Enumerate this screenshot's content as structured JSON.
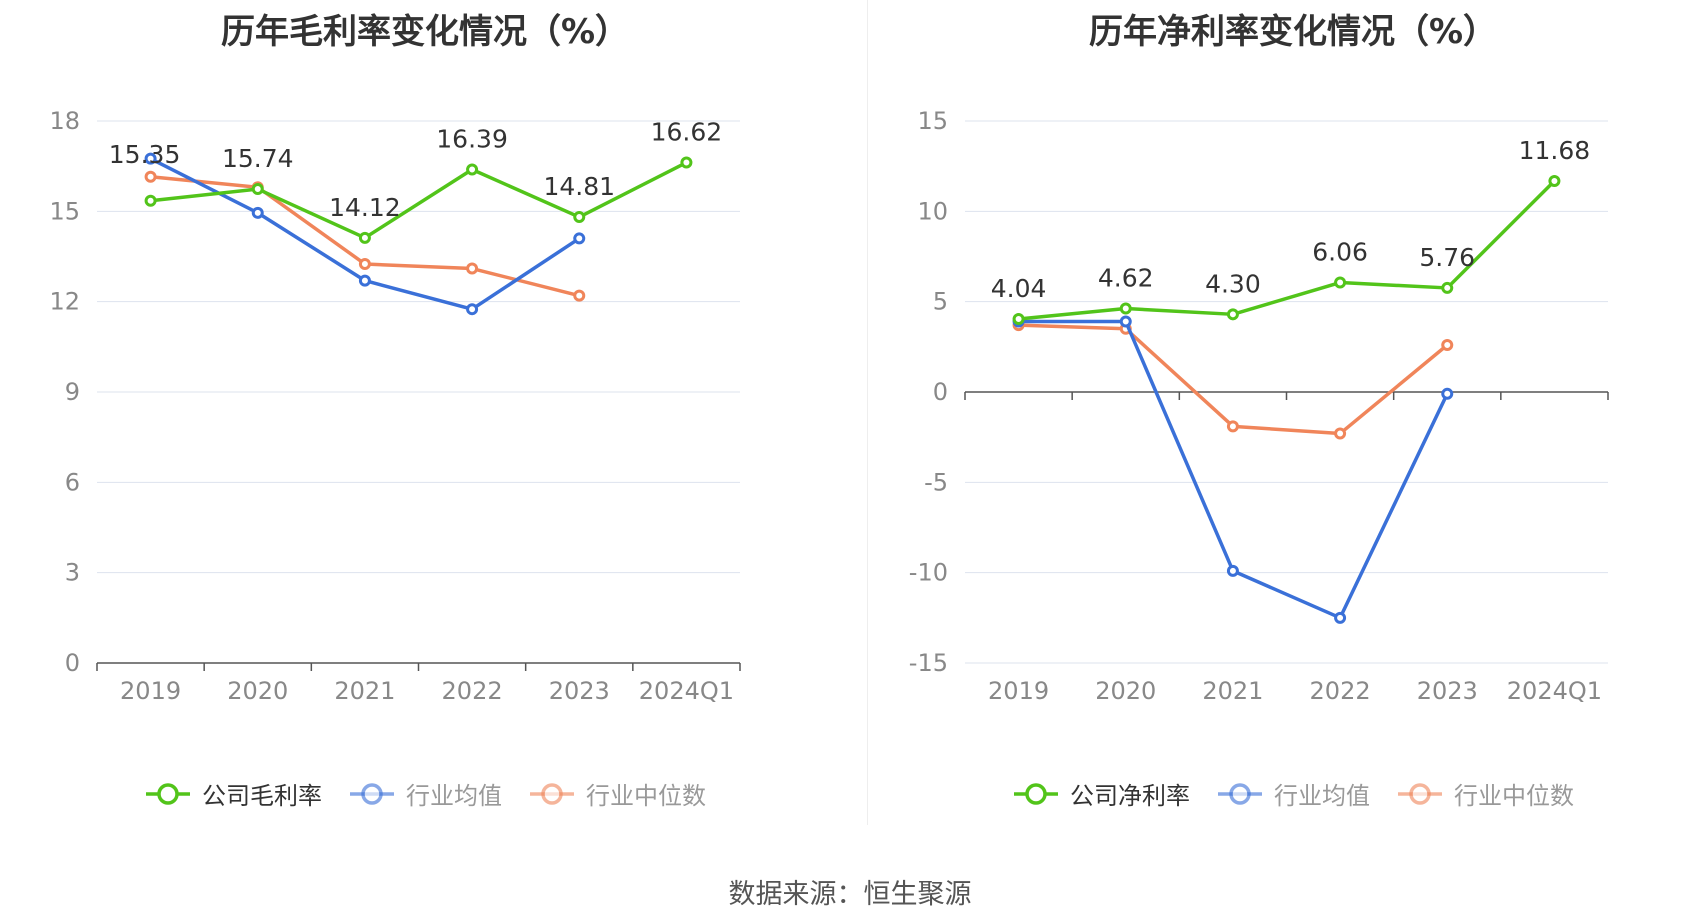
{
  "source_text": "数据来源：恒生聚源",
  "chart_data": [
    {
      "type": "line",
      "title": "历年毛利率变化情况（%）",
      "categories": [
        "2019",
        "2020",
        "2021",
        "2022",
        "2023",
        "2024Q1"
      ],
      "ylim": [
        0,
        18
      ],
      "yticks": [
        0,
        3,
        6,
        9,
        12,
        15,
        18
      ],
      "grid": true,
      "legend_position": "bottom",
      "series": [
        {
          "name": "公司毛利率",
          "color": "#52c41a",
          "values": [
            15.35,
            15.74,
            14.12,
            16.39,
            14.81,
            16.62
          ],
          "labels": [
            "15.35",
            "15.74",
            "14.12",
            "16.39",
            "14.81",
            "16.62"
          ]
        },
        {
          "name": "行业均值",
          "color": "#3a70d8",
          "values": [
            16.75,
            14.95,
            12.7,
            11.75,
            14.1,
            null
          ]
        },
        {
          "name": "行业中位数",
          "color": "#f0855a",
          "values": [
            16.15,
            15.8,
            13.25,
            13.1,
            12.2,
            null
          ]
        }
      ]
    },
    {
      "type": "line",
      "title": "历年净利率变化情况（%）",
      "categories": [
        "2019",
        "2020",
        "2021",
        "2022",
        "2023",
        "2024Q1"
      ],
      "ylim": [
        -15,
        15
      ],
      "yticks": [
        -15,
        -10,
        -5,
        0,
        5,
        10,
        15
      ],
      "grid": true,
      "legend_position": "bottom",
      "series": [
        {
          "name": "公司净利率",
          "color": "#52c41a",
          "values": [
            4.04,
            4.62,
            4.3,
            6.06,
            5.76,
            11.68
          ],
          "labels": [
            "4.04",
            "4.62",
            "4.30",
            "6.06",
            "5.76",
            "11.68"
          ]
        },
        {
          "name": "行业均值",
          "color": "#3a70d8",
          "values": [
            3.9,
            3.9,
            -9.9,
            -12.5,
            -0.1,
            null
          ]
        },
        {
          "name": "行业中位数",
          "color": "#f0855a",
          "values": [
            3.7,
            3.5,
            -1.9,
            -2.3,
            2.6,
            null
          ]
        }
      ]
    }
  ]
}
